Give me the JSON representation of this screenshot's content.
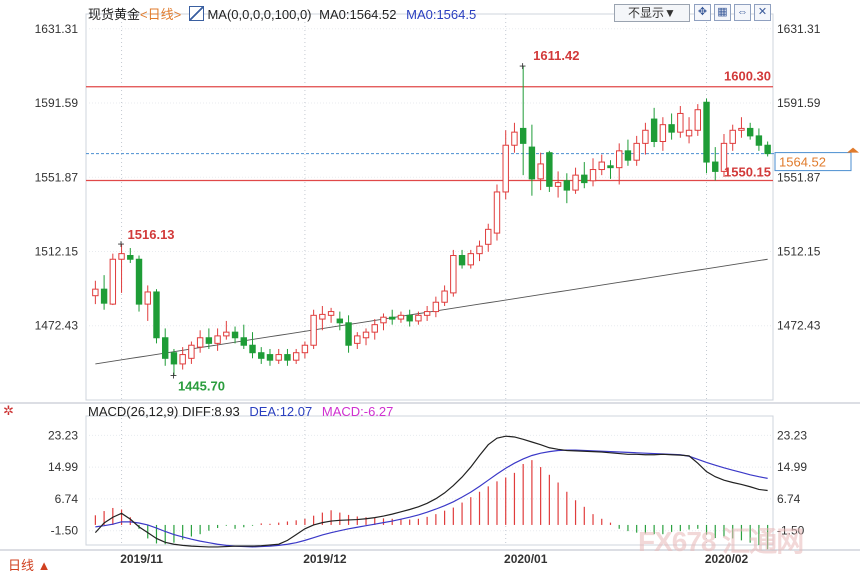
{
  "header": {
    "instrument": "现货黄金",
    "period": "<日线>",
    "ma_label": "MA(0,0,0,0,100,0)",
    "ma_value": "MA0:1564.52",
    "ma_value_blue": "MA0:1564.5",
    "hide_button": "不显示▼",
    "icons": [
      "expand-icon",
      "grid-icon",
      "collapse-icon",
      "close-icon"
    ]
  },
  "price_axis": {
    "ticks": [
      "1631.31",
      "1591.59",
      "1551.87",
      "1512.15",
      "1472.43"
    ],
    "ticks_right": [
      "1631.31",
      "1591.59",
      "1551.87",
      "1512.15",
      "1472.43"
    ],
    "current": "1564.52",
    "ylim": [
      1432.7,
      1636
    ]
  },
  "annotations": {
    "high": "1611.42",
    "low": "1445.70",
    "peak_nov": "1516.13",
    "resistance": "1600.30",
    "support": "1550.15"
  },
  "macd_panel": {
    "title": "MACD(26,12,9)",
    "diff": "DIFF:8.93",
    "dea": "DEA:12.07",
    "macd": "MACD:-6.27",
    "ticks": [
      "23.23",
      "14.99",
      "6.74",
      "-1.50"
    ],
    "ticks_right": [
      "23.23",
      "14.99",
      "6.74",
      "-1.50"
    ]
  },
  "x_axis": {
    "labels": [
      "2019/11",
      "2019/12",
      "2020/01",
      "2020/02"
    ]
  },
  "bottom": {
    "period_tab": "日线 ▲"
  },
  "watermark": "FX678 汇通网",
  "colors": {
    "up": "#e03c3c",
    "down": "#1e9c37",
    "ma": "#555555",
    "diff": "#222222",
    "dea": "#3b39c8",
    "macd": "#e040e0"
  },
  "chart_data": [
    {
      "type": "candlestick",
      "title": "现货黄金 日线",
      "ylim": [
        1432.7,
        1636
      ],
      "candles": [
        [
          1488.5,
          1496.5,
          1484.0,
          1492.0
        ],
        [
          1492.0,
          1499.5,
          1481.0,
          1484.5
        ],
        [
          1484.0,
          1511.0,
          1483.5,
          1508.0
        ],
        [
          1508.0,
          1516.13,
          1490.0,
          1511.0
        ],
        [
          1510.0,
          1514.0,
          1506.0,
          1508.0
        ],
        [
          1508.0,
          1510.0,
          1480.0,
          1484.0
        ],
        [
          1484.0,
          1494.0,
          1475.0,
          1490.5
        ],
        [
          1490.5,
          1492.0,
          1463.0,
          1466.0
        ],
        [
          1466.0,
          1471.0,
          1451.0,
          1455.0
        ],
        [
          1458.0,
          1460.0,
          1445.7,
          1452.0
        ],
        [
          1452.0,
          1461.0,
          1449.0,
          1457.0
        ],
        [
          1455.0,
          1464.0,
          1452.0,
          1462.0
        ],
        [
          1461.0,
          1470.0,
          1458.0,
          1466.0
        ],
        [
          1466.0,
          1471.0,
          1460.0,
          1463.0
        ],
        [
          1463.0,
          1471.0,
          1459.0,
          1467.0
        ],
        [
          1467.0,
          1475.0,
          1465.0,
          1469.0
        ],
        [
          1469.0,
          1472.0,
          1463.0,
          1466.0
        ],
        [
          1466.0,
          1473.0,
          1460.0,
          1462.0
        ],
        [
          1462.0,
          1469.0,
          1455.0,
          1458.0
        ],
        [
          1458.0,
          1461.0,
          1452.0,
          1455.0
        ],
        [
          1457.0,
          1460.0,
          1451.0,
          1454.0
        ],
        [
          1454.0,
          1460.0,
          1452.0,
          1457.0
        ],
        [
          1457.0,
          1460.0,
          1451.0,
          1454.0
        ],
        [
          1454.0,
          1460.0,
          1452.0,
          1458.0
        ],
        [
          1458.0,
          1464.0,
          1455.0,
          1462.0
        ],
        [
          1462.0,
          1481.0,
          1460.0,
          1478.0
        ],
        [
          1476.0,
          1483.0,
          1470.0,
          1478.5
        ],
        [
          1478.0,
          1482.0,
          1474.0,
          1480.0
        ],
        [
          1476.0,
          1480.0,
          1470.0,
          1474.0
        ],
        [
          1474.0,
          1478.0,
          1458.0,
          1462.0
        ],
        [
          1463.0,
          1469.0,
          1460.0,
          1467.0
        ],
        [
          1466.0,
          1471.0,
          1462.0,
          1469.0
        ],
        [
          1469.0,
          1476.0,
          1465.0,
          1473.0
        ],
        [
          1474.0,
          1479.0,
          1470.0,
          1477.0
        ],
        [
          1477.0,
          1481.0,
          1473.0,
          1476.0
        ],
        [
          1476.0,
          1480.0,
          1474.0,
          1478.0
        ],
        [
          1478.0,
          1481.0,
          1472.0,
          1475.0
        ],
        [
          1475.0,
          1480.0,
          1473.0,
          1478.0
        ],
        [
          1478.0,
          1483.0,
          1475.0,
          1480.0
        ],
        [
          1480.0,
          1488.0,
          1477.0,
          1485.0
        ],
        [
          1485.0,
          1494.0,
          1483.0,
          1491.0
        ],
        [
          1490.0,
          1513.0,
          1488.0,
          1510.0
        ],
        [
          1510.0,
          1513.0,
          1503.0,
          1505.0
        ],
        [
          1505.0,
          1513.0,
          1503.0,
          1511.0
        ],
        [
          1511.0,
          1518.0,
          1507.0,
          1515.0
        ],
        [
          1516.0,
          1527.0,
          1512.0,
          1524.0
        ],
        [
          1522.0,
          1548.0,
          1518.0,
          1544.0
        ],
        [
          1544.0,
          1577.0,
          1540.0,
          1569.0
        ],
        [
          1569.0,
          1581.0,
          1565.0,
          1576.0
        ],
        [
          1578.0,
          1611.42,
          1553.0,
          1570.0
        ],
        [
          1568.0,
          1580.0,
          1542.0,
          1551.0
        ],
        [
          1551.0,
          1565.0,
          1545.0,
          1559.0
        ],
        [
          1565.0,
          1566.0,
          1544.0,
          1547.0
        ],
        [
          1547.0,
          1555.0,
          1541.0,
          1549.0
        ],
        [
          1550.0,
          1554.0,
          1538.0,
          1545.0
        ],
        [
          1545.0,
          1557.0,
          1543.0,
          1553.0
        ],
        [
          1553.0,
          1560.0,
          1546.0,
          1549.0
        ],
        [
          1550.0,
          1562.0,
          1547.0,
          1556.0
        ],
        [
          1556.0,
          1564.0,
          1553.0,
          1560.0
        ],
        [
          1558.0,
          1561.0,
          1551.0,
          1557.0
        ],
        [
          1557.0,
          1570.0,
          1548.0,
          1566.0
        ],
        [
          1566.0,
          1572.0,
          1558.0,
          1561.0
        ],
        [
          1561.0,
          1574.0,
          1558.0,
          1570.0
        ],
        [
          1570.0,
          1581.0,
          1564.0,
          1577.0
        ],
        [
          1583.0,
          1589.0,
          1568.0,
          1571.0
        ],
        [
          1571.0,
          1584.0,
          1566.0,
          1580.0
        ],
        [
          1580.0,
          1586.0,
          1572.0,
          1576.0
        ],
        [
          1576.0,
          1590.0,
          1573.0,
          1586.0
        ],
        [
          1574.0,
          1584.0,
          1570.0,
          1577.0
        ],
        [
          1577.0,
          1591.0,
          1574.0,
          1588.0
        ],
        [
          1592.0,
          1594.0,
          1554.0,
          1560.0
        ],
        [
          1560.0,
          1568.0,
          1550.15,
          1555.0
        ],
        [
          1555.0,
          1575.0,
          1552.0,
          1570.0
        ],
        [
          1570.0,
          1580.0,
          1566.0,
          1577.0
        ],
        [
          1577.0,
          1584.0,
          1573.0,
          1578.0
        ],
        [
          1578.0,
          1581.0,
          1572.0,
          1574.0
        ],
        [
          1574.0,
          1578.0,
          1566.0,
          1569.0
        ],
        [
          1569.0,
          1571.0,
          1563.0,
          1564.52
        ]
      ],
      "ma100": [
        1452,
        1456,
        1460,
        1462.5,
        1465,
        1467,
        1469,
        1470.5,
        1472,
        1473.5,
        1475,
        1476,
        1477,
        1478,
        1479,
        1480,
        1481,
        1482,
        1483,
        1484,
        1485,
        1486,
        1487.5,
        1489,
        1490.5,
        1492,
        1493.5,
        1495,
        1496.5,
        1498,
        1499.5,
        1501,
        1503,
        1505,
        1507
      ],
      "ma100_step": 2.2,
      "hlines": [
        1600.3,
        1564.52,
        1550.15
      ]
    },
    {
      "type": "macd",
      "title": "MACD(26,12,9)",
      "ylim": [
        -5.2,
        27.2
      ],
      "hist": [
        2.5,
        3.6,
        4.4,
        4.0,
        2.0,
        -1.0,
        -3.5,
        -4.8,
        -5.0,
        -4.6,
        -3.8,
        -3.0,
        -2.4,
        -1.5,
        -0.8,
        -0.2,
        -1.0,
        -0.6,
        -0.2,
        0.4,
        0.3,
        0.6,
        0.9,
        1.2,
        1.6,
        2.4,
        3.2,
        3.8,
        3.2,
        2.6,
        2.2,
        2.0,
        1.9,
        1.7,
        1.6,
        1.5,
        1.4,
        1.6,
        2.1,
        2.8,
        3.7,
        4.5,
        5.8,
        7.2,
        8.6,
        10.0,
        11.3,
        12.3,
        13.5,
        15.8,
        16.8,
        15.0,
        13.0,
        11.0,
        8.6,
        6.4,
        4.7,
        2.8,
        1.6,
        0.6,
        -1.0,
        -1.6,
        -2.0,
        -2.2,
        -2.4,
        -2.4,
        -1.8,
        -1.6,
        -1.2,
        -1.0,
        -2.5,
        -3.4,
        -3.0,
        -3.5,
        -4.0,
        -4.6,
        -5.2,
        -6.27
      ],
      "diff": [
        -2.0,
        0.5,
        2.0,
        3.0,
        1.5,
        -0.5,
        -2.0,
        -3.5,
        -4.5,
        -5.0,
        -5.3,
        -5.5,
        -5.6,
        -5.7,
        -5.7,
        -5.6,
        -5.5,
        -5.5,
        -5.5,
        -5.4,
        -5.2,
        -5.0,
        -4.0,
        -2.5,
        -1.0,
        0.0,
        0.6,
        1.0,
        1.2,
        1.3,
        1.4,
        1.6,
        1.9,
        2.3,
        2.8,
        3.4,
        4.0,
        4.7,
        5.6,
        6.8,
        8.3,
        10.2,
        12.4,
        15.0,
        18.0,
        20.8,
        22.5,
        23.0,
        22.8,
        22.2,
        21.5,
        20.8,
        20.0,
        19.6,
        19.3,
        19.2,
        19.1,
        19.0,
        18.9,
        18.7,
        18.5,
        18.3,
        18.3,
        18.2,
        18.2,
        18.3,
        18.2,
        18.1,
        17.9,
        16.0,
        13.8,
        12.5,
        11.6,
        11.0,
        10.5,
        9.9,
        9.2,
        8.93
      ],
      "dea": [
        -0.5,
        -0.2,
        0.2,
        0.8,
        0.8,
        0.5,
        0.0,
        -0.8,
        -1.7,
        -2.5,
        -3.1,
        -3.7,
        -4.2,
        -4.6,
        -5.0,
        -5.3,
        -5.5,
        -5.6,
        -5.7,
        -5.6,
        -5.5,
        -5.3,
        -5.0,
        -4.6,
        -4.0,
        -3.3,
        -2.6,
        -2.0,
        -1.5,
        -1.0,
        -0.6,
        -0.2,
        0.2,
        0.6,
        1.0,
        1.5,
        2.0,
        2.6,
        3.3,
        4.1,
        5.0,
        6.0,
        7.2,
        8.5,
        10.0,
        11.6,
        13.2,
        14.7,
        16.0,
        17.1,
        18.0,
        18.6,
        19.0,
        19.3,
        19.4,
        19.4,
        19.3,
        19.2,
        19.1,
        19.0,
        18.9,
        18.8,
        18.7,
        18.6,
        18.5,
        18.4,
        18.3,
        18.2,
        17.8,
        17.0,
        16.2,
        15.5,
        14.8,
        14.2,
        13.6,
        13.0,
        12.5,
        12.07
      ]
    }
  ]
}
